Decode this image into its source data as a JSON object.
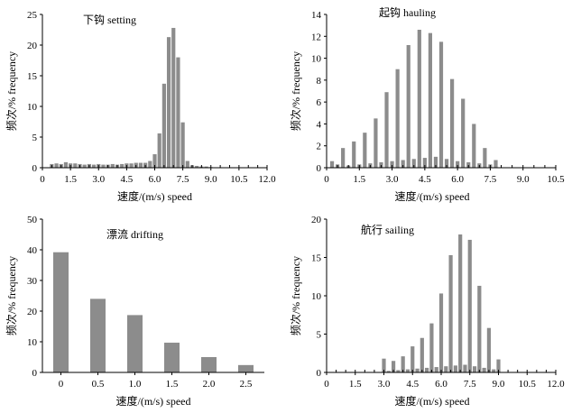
{
  "chart_data": [
    {
      "type": "bar",
      "title": "下钩 setting",
      "xlabel": "速度/(m/s) speed",
      "ylabel": "频次/% frequency",
      "xlim": [
        0,
        12.0
      ],
      "ylim": [
        0,
        25
      ],
      "xticks": [
        "0",
        "1.5",
        "3.0",
        "4.5",
        "6.0",
        "7.5",
        "9.0",
        "10.5",
        "12.0"
      ],
      "yticks": [
        "0",
        "5",
        "10",
        "15",
        "20",
        "25"
      ],
      "x": [
        0.5,
        0.75,
        1.0,
        1.25,
        1.5,
        1.75,
        2.0,
        2.25,
        2.5,
        2.75,
        3.0,
        3.25,
        3.5,
        3.75,
        4.0,
        4.25,
        4.5,
        4.75,
        5.0,
        5.25,
        5.5,
        5.75,
        6.0,
        6.25,
        6.5,
        6.75,
        7.0,
        7.25,
        7.5,
        7.75,
        8.0,
        8.25,
        8.5,
        8.75,
        9.0
      ],
      "values": [
        0.6,
        0.7,
        0.6,
        0.9,
        0.7,
        0.7,
        0.6,
        0.5,
        0.6,
        0.5,
        0.6,
        0.5,
        0.5,
        0.6,
        0.5,
        0.6,
        0.7,
        0.7,
        0.8,
        0.8,
        0.8,
        1.1,
        2.2,
        5.6,
        13.7,
        21.3,
        22.8,
        18.0,
        7.4,
        1.1,
        0.4,
        0.3,
        0.2,
        0.2,
        0.1
      ]
    },
    {
      "type": "bar",
      "title": "起钩 hauling",
      "xlabel": "速度/(m/s) speed",
      "ylabel": "频次/% frequency",
      "xlim": [
        0,
        10.5
      ],
      "ylim": [
        0,
        14
      ],
      "xticks": [
        "0",
        "1.5",
        "3.0",
        "4.5",
        "6.0",
        "7.5",
        "9.0",
        "10.5"
      ],
      "yticks": [
        "0",
        "2",
        "4",
        "6",
        "8",
        "10",
        "12",
        "14"
      ],
      "x": [
        0.25,
        0.5,
        0.75,
        1.0,
        1.25,
        1.5,
        1.75,
        2.0,
        2.25,
        2.5,
        2.75,
        3.0,
        3.25,
        3.5,
        3.75,
        4.0,
        4.25,
        4.5,
        4.75,
        5.0,
        5.25,
        5.5,
        5.75,
        6.0,
        6.25,
        6.5,
        6.75,
        7.0,
        7.25,
        7.5,
        7.75
      ],
      "values": [
        0.6,
        0.3,
        1.8,
        0.2,
        2.4,
        0.3,
        3.2,
        0.4,
        4.5,
        0.5,
        6.9,
        0.6,
        9.0,
        0.7,
        11.2,
        0.8,
        12.6,
        0.9,
        12.3,
        1.0,
        11.5,
        0.8,
        8.1,
        0.6,
        6.3,
        0.5,
        4.0,
        0.4,
        1.8,
        0.3,
        0.7
      ]
    },
    {
      "type": "bar",
      "title": "漂流 drifting",
      "xlabel": "速度/(m/s) speed",
      "ylabel": "频次/% frequency",
      "xlim": [
        -0.25,
        2.75
      ],
      "ylim": [
        0,
        50
      ],
      "xticks": [
        "0",
        "0.5",
        "1.0",
        "1.5",
        "2.0",
        "2.5"
      ],
      "yticks": [
        "0",
        "10",
        "20",
        "30",
        "40",
        "50"
      ],
      "x": [
        0,
        0.5,
        1.0,
        1.5,
        2.0,
        2.5
      ],
      "values": [
        39.2,
        24.0,
        18.7,
        9.7,
        5.0,
        2.4
      ]
    },
    {
      "type": "bar",
      "title": "航行 sailing",
      "xlabel": "速度/(m/s) speed",
      "ylabel": "频次/% frequency",
      "xlim": [
        0,
        12.0
      ],
      "ylim": [
        0,
        20
      ],
      "xticks": [
        "0",
        "1.5",
        "3.0",
        "4.5",
        "6.0",
        "7.5",
        "9.0",
        "10.5",
        "12.0"
      ],
      "yticks": [
        "0",
        "5",
        "10",
        "15",
        "20"
      ],
      "x": [
        3.0,
        3.25,
        3.5,
        3.75,
        4.0,
        4.25,
        4.5,
        4.75,
        5.0,
        5.25,
        5.5,
        5.75,
        6.0,
        6.25,
        6.5,
        6.75,
        7.0,
        7.25,
        7.5,
        7.75,
        8.0,
        8.25,
        8.5,
        8.75,
        9.0
      ],
      "values": [
        1.8,
        0.2,
        1.5,
        0.3,
        2.1,
        0.4,
        3.4,
        0.5,
        4.5,
        0.6,
        6.4,
        0.7,
        10.3,
        0.8,
        15.3,
        0.9,
        18.0,
        1.0,
        17.3,
        0.8,
        11.3,
        0.6,
        5.8,
        0.4,
        1.7
      ]
    }
  ]
}
